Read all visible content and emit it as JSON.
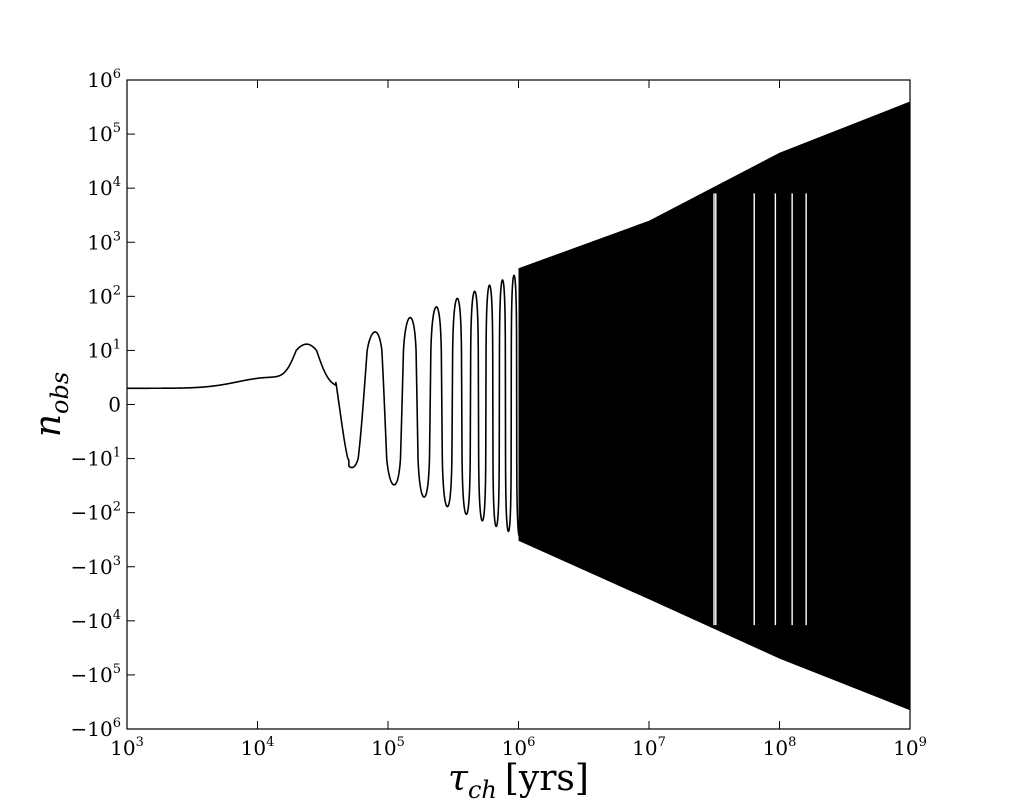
{
  "chart_data": {
    "type": "line",
    "title": "",
    "xlabel": {
      "symbol": "τ",
      "subscript": "ch",
      "unit": "[yrs]"
    },
    "ylabel": {
      "symbol": "n",
      "subscript": "obs"
    },
    "x_scale": "log",
    "y_scale": "symlog",
    "xlim": [
      1000,
      1000000000
    ],
    "ylim": [
      -1000000,
      1000000
    ],
    "x_ticks": [
      {
        "value": 1000,
        "base": "10",
        "exp": "3"
      },
      {
        "value": 10000,
        "base": "10",
        "exp": "4"
      },
      {
        "value": 100000,
        "base": "10",
        "exp": "5"
      },
      {
        "value": 1000000,
        "base": "10",
        "exp": "6"
      },
      {
        "value": 10000000,
        "base": "10",
        "exp": "7"
      },
      {
        "value": 100000000,
        "base": "10",
        "exp": "8"
      },
      {
        "value": 1000000000,
        "base": "10",
        "exp": "9"
      }
    ],
    "y_ticks": [
      {
        "value": 1000000,
        "base": "10",
        "exp": "6"
      },
      {
        "value": 100000,
        "base": "10",
        "exp": "5"
      },
      {
        "value": 10000,
        "base": "10",
        "exp": "4"
      },
      {
        "value": 1000,
        "base": "10",
        "exp": "3"
      },
      {
        "value": 100,
        "base": "10",
        "exp": "2"
      },
      {
        "value": 10,
        "base": "10",
        "exp": "1"
      },
      {
        "value": 0,
        "base": "0",
        "exp": ""
      },
      {
        "value": -10,
        "base": "−10",
        "exp": "1"
      },
      {
        "value": -100,
        "base": "−10",
        "exp": "2"
      },
      {
        "value": -1000,
        "base": "−10",
        "exp": "3"
      },
      {
        "value": -10000,
        "base": "−10",
        "exp": "4"
      },
      {
        "value": -100000,
        "base": "−10",
        "exp": "5"
      },
      {
        "value": -1000000,
        "base": "−10",
        "exp": "6"
      }
    ],
    "series": [
      {
        "color": "#000000",
        "description_points": {
          "x": [
            1000,
            10000,
            24000,
            47000,
            88000,
            110000,
            150000,
            1000000,
            10000000,
            100000000,
            1000000000
          ],
          "y": [
            3,
            5,
            13,
            -16,
            40,
            -45,
            70,
            330,
            15000,
            45000,
            400000
          ]
        },
        "envelope": {
          "x": [
            1000000,
            10000000,
            100000000,
            1000000000
          ],
          "upper": [
            330,
            2500,
            45000,
            400000
          ],
          "lower": [
            -330,
            -4000,
            -50000,
            -450000
          ]
        }
      }
    ]
  }
}
